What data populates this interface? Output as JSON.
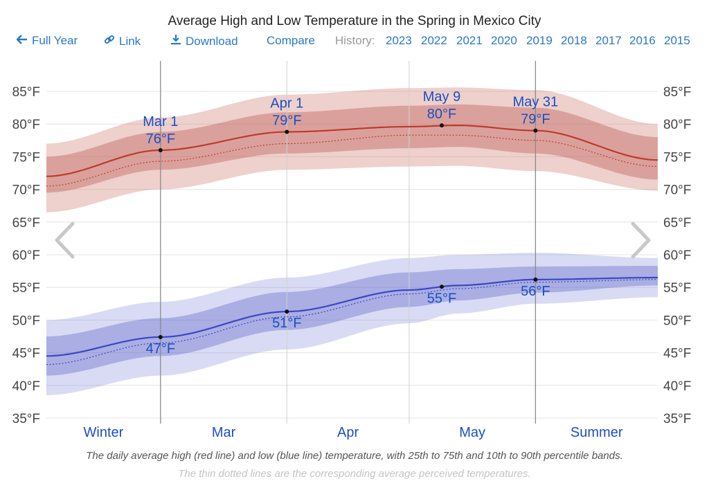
{
  "toolbar": {
    "full_year": "Full Year",
    "link": "Link",
    "download": "Download",
    "compare": "Compare",
    "history_label": "History:",
    "years": [
      "2023",
      "2022",
      "2021",
      "2020",
      "2019",
      "2018",
      "2017",
      "2016",
      "2015"
    ]
  },
  "icons": {
    "back": "arrow-left-icon",
    "link": "link-icon",
    "download": "download-icon",
    "prev": "chevron-left-icon",
    "next": "chevron-right-icon"
  },
  "captions": {
    "line1": "The daily average high (red line) and low (blue line) temperature, with 25th to 75th and 10th to 90th percentile bands.",
    "line2": "The thin dotted lines are the corresponding average perceived temperatures."
  },
  "chart_data": {
    "type": "line",
    "title": "Average High and Low Temperature in the Spring in Mexico City",
    "x_unit": "days from Feb 1",
    "ylim": [
      35,
      87
    ],
    "yticks": [
      85,
      80,
      75,
      70,
      65,
      60,
      55,
      50,
      45,
      40,
      35
    ],
    "ytick_labels": [
      "85°F",
      "80°F",
      "75°F",
      "70°F",
      "65°F",
      "60°F",
      "55°F",
      "50°F",
      "45°F",
      "40°F",
      "35°F"
    ],
    "season_labels": [
      {
        "label": "Winter",
        "x": 14
      },
      {
        "label": "Mar",
        "x": 43.5
      },
      {
        "label": "Apr",
        "x": 74
      },
      {
        "label": "May",
        "x": 104.5
      },
      {
        "label": "Summer",
        "x": 135
      }
    ],
    "month_boundaries": [
      28,
      59,
      89,
      120
    ],
    "marker_lines": [
      28,
      120
    ],
    "x": [
      0,
      28,
      59,
      89,
      101,
      120,
      150
    ],
    "series": [
      {
        "name": "Average high",
        "color": "#c0392b",
        "values": [
          72,
          76,
          78.8,
          79.6,
          79.8,
          79,
          74.5
        ],
        "perceived": [
          70.5,
          74.3,
          77,
          78.3,
          78.3,
          77.5,
          73.5
        ],
        "p25": [
          69.5,
          73,
          75.5,
          76.3,
          76.5,
          75.5,
          71.5
        ],
        "p75": [
          75,
          78.8,
          81.8,
          82.8,
          83,
          82.5,
          78
        ],
        "p10": [
          66.5,
          70,
          73,
          73.5,
          73.6,
          72.8,
          69.8
        ],
        "p90": [
          77,
          81,
          84.5,
          85.5,
          85.6,
          85.2,
          80
        ]
      },
      {
        "name": "Average low",
        "color": "#3b46c4",
        "values": [
          44.5,
          47.4,
          51.3,
          54.6,
          55.3,
          56.2,
          56.5
        ],
        "perceived": [
          43.2,
          46.5,
          50.5,
          54,
          54.8,
          55.8,
          56.2
        ],
        "p25": [
          41.5,
          44.5,
          48.5,
          52,
          53,
          54.2,
          55.3
        ],
        "p75": [
          47.5,
          50.3,
          54.3,
          57.3,
          57.8,
          58.2,
          58.3
        ],
        "p10": [
          38.5,
          41.5,
          45.5,
          49.5,
          51,
          52.5,
          53.5
        ],
        "p90": [
          50,
          52.8,
          56.5,
          59.5,
          60,
          60.3,
          59.5
        ]
      }
    ],
    "annotations": [
      {
        "x": 28,
        "y": 76,
        "series": "high",
        "date": "Mar 1",
        "label": "76°F"
      },
      {
        "x": 59,
        "y": 78.8,
        "series": "high",
        "date": "Apr 1",
        "label": "79°F"
      },
      {
        "x": 97,
        "y": 79.8,
        "series": "high",
        "date": "May 9",
        "label": "80°F"
      },
      {
        "x": 120,
        "y": 79,
        "series": "high",
        "date": "May 31",
        "label": "79°F"
      },
      {
        "x": 28,
        "y": 47.4,
        "series": "low",
        "date": "",
        "label": "47°F"
      },
      {
        "x": 59,
        "y": 51.3,
        "series": "low",
        "date": "",
        "label": "51°F"
      },
      {
        "x": 97,
        "y": 55.1,
        "series": "low",
        "date": "",
        "label": "55°F"
      },
      {
        "x": 120,
        "y": 56.2,
        "series": "low",
        "date": "",
        "label": "56°F"
      }
    ]
  }
}
